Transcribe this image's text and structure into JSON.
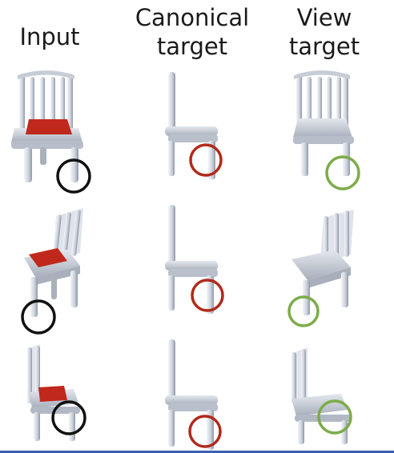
{
  "headers": {
    "input": "Input",
    "canonical": "Canonical\ntarget",
    "view": "View\ntarget"
  },
  "colors": {
    "input_marker": "#111111",
    "canonical_marker": "#b02a1b",
    "view_marker": "#7dac4a",
    "seat_highlight": "#c0281c",
    "chair_body": "#d4d9e2",
    "rule": "#3b5fae"
  },
  "rows": [
    {
      "input": "chair-front-view",
      "canonical": "chair-side-view",
      "view": "chair-front-view"
    },
    {
      "input": "chair-angled-view",
      "canonical": "chair-side-view",
      "view": "chair-angled-view"
    },
    {
      "input": "chair-side-angled-view",
      "canonical": "chair-side-view",
      "view": "chair-side-angled-view"
    }
  ]
}
